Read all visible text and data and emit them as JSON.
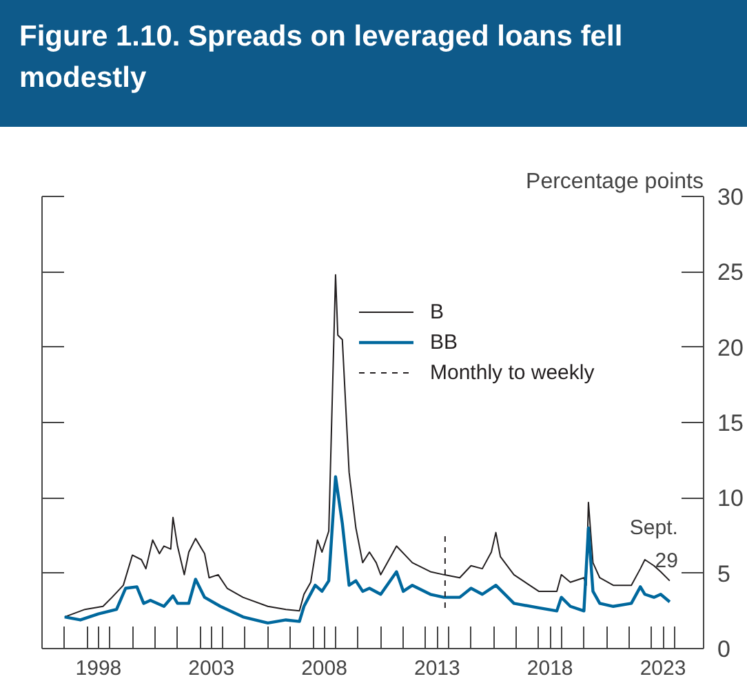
{
  "chart_data": {
    "type": "line",
    "title": "Figure 1.10. Spreads on leveraged loans fell modestly",
    "ylabel": "Percentage points",
    "xlim": [
      1996,
      2025.3
    ],
    "ylim": [
      0,
      30
    ],
    "yticks": [
      0,
      5,
      10,
      15,
      20,
      25,
      30
    ],
    "xticks": [
      {
        "value": 1997,
        "label": null
      },
      {
        "value": 1998,
        "label": null
      },
      {
        "value": 1998.5,
        "label": "1998"
      },
      {
        "value": 1999,
        "label": null
      },
      {
        "value": 2000,
        "label": null
      },
      {
        "value": 2001,
        "label": null
      },
      {
        "value": 2002,
        "label": null
      },
      {
        "value": 2003,
        "label": null
      },
      {
        "value": 2003.5,
        "label": "2003"
      },
      {
        "value": 2004,
        "label": null
      },
      {
        "value": 2005,
        "label": null
      },
      {
        "value": 2006,
        "label": null
      },
      {
        "value": 2007,
        "label": null
      },
      {
        "value": 2008,
        "label": null
      },
      {
        "value": 2008.5,
        "label": "2008"
      },
      {
        "value": 2009,
        "label": null
      },
      {
        "value": 2010,
        "label": null
      },
      {
        "value": 2011,
        "label": null
      },
      {
        "value": 2012,
        "label": null
      },
      {
        "value": 2013,
        "label": null
      },
      {
        "value": 2013.5,
        "label": "2013"
      },
      {
        "value": 2014,
        "label": null
      },
      {
        "value": 2015,
        "label": null
      },
      {
        "value": 2016,
        "label": null
      },
      {
        "value": 2017,
        "label": null
      },
      {
        "value": 2018,
        "label": null
      },
      {
        "value": 2018.5,
        "label": "2018"
      },
      {
        "value": 2019,
        "label": null
      },
      {
        "value": 2020,
        "label": null
      },
      {
        "value": 2021,
        "label": null
      },
      {
        "value": 2022,
        "label": null
      },
      {
        "value": 2023,
        "label": null
      },
      {
        "value": 2023.5,
        "label": "2023"
      },
      {
        "value": 2024,
        "label": null
      }
    ],
    "series": [
      {
        "name": "B",
        "color": "#231f20",
        "x": [
          1997.0,
          1997.9,
          1998.7,
          1999.1,
          1999.6,
          2000.0,
          2000.4,
          2000.6,
          2000.9,
          2001.2,
          2001.4,
          2001.7,
          2001.8,
          2002.0,
          2002.3,
          2002.5,
          2002.8,
          2003.2,
          2003.4,
          2003.8,
          2004.2,
          2004.9,
          2006.0,
          2006.8,
          2007.4,
          2007.6,
          2007.9,
          2008.2,
          2008.4,
          2008.7,
          2009.0,
          2009.1,
          2009.3,
          2009.6,
          2009.9,
          2010.2,
          2010.5,
          2010.8,
          2011.0,
          2011.7,
          2012.4,
          2013.2,
          2013.8,
          2014.5,
          2015.0,
          2015.5,
          2015.9,
          2016.1,
          2016.3,
          2016.9,
          2018.0,
          2018.8,
          2019.0,
          2019.4,
          2020.0,
          2020.1,
          2020.2,
          2020.4,
          2020.7,
          2021.3,
          2022.1,
          2022.5,
          2022.7,
          2023.1,
          2023.4,
          2023.8
        ],
        "values": [
          2.1,
          2.6,
          2.8,
          3.4,
          4.2,
          6.2,
          5.9,
          5.3,
          7.2,
          6.3,
          6.8,
          6.6,
          8.7,
          6.8,
          4.9,
          6.4,
          7.3,
          6.3,
          4.7,
          4.9,
          4.0,
          3.4,
          2.8,
          2.6,
          2.5,
          3.6,
          4.4,
          7.2,
          6.4,
          7.8,
          24.8,
          20.8,
          20.5,
          11.7,
          8.0,
          5.7,
          6.4,
          5.7,
          4.9,
          6.8,
          5.7,
          5.1,
          4.9,
          4.7,
          5.5,
          5.3,
          6.4,
          7.7,
          6.1,
          4.9,
          3.8,
          3.8,
          4.9,
          4.4,
          4.7,
          4.2,
          9.7,
          5.7,
          4.7,
          4.2,
          4.2,
          5.3,
          5.9,
          5.5,
          5.1,
          4.5
        ]
      },
      {
        "name": "BB",
        "color": "#00689d",
        "x": [
          1997.0,
          1997.7,
          1998.5,
          1999.3,
          1999.7,
          2000.2,
          2000.5,
          2000.8,
          2001.4,
          2001.8,
          2002.0,
          2002.5,
          2002.8,
          2003.2,
          2003.9,
          2004.9,
          2006.0,
          2006.8,
          2007.4,
          2007.6,
          2008.1,
          2008.4,
          2008.7,
          2009.0,
          2009.3,
          2009.6,
          2009.9,
          2010.2,
          2010.5,
          2011.0,
          2011.7,
          2012.0,
          2012.4,
          2013.2,
          2013.8,
          2014.5,
          2015.0,
          2015.5,
          2016.1,
          2016.9,
          2018.0,
          2018.8,
          2019.0,
          2019.4,
          2020.0,
          2020.2,
          2020.4,
          2020.7,
          2021.3,
          2022.1,
          2022.5,
          2022.7,
          2023.1,
          2023.4,
          2023.8
        ],
        "values": [
          2.1,
          1.9,
          2.3,
          2.6,
          4.0,
          4.1,
          3.0,
          3.2,
          2.8,
          3.5,
          3.0,
          3.0,
          4.6,
          3.4,
          2.8,
          2.1,
          1.7,
          1.9,
          1.8,
          2.8,
          4.2,
          3.8,
          4.5,
          11.4,
          8.3,
          4.2,
          4.5,
          3.8,
          4.0,
          3.6,
          5.1,
          3.8,
          4.2,
          3.6,
          3.4,
          3.4,
          4.0,
          3.6,
          4.2,
          3.0,
          2.7,
          2.5,
          3.4,
          2.8,
          2.5,
          8.0,
          3.8,
          3.0,
          2.8,
          3.0,
          4.1,
          3.6,
          3.4,
          3.6,
          3.1
        ]
      }
    ],
    "ref_lines": [
      {
        "axis": "x",
        "value": 2013.85,
        "label": "Monthly to weekly",
        "line_style": "dashed",
        "color": "#231f20"
      }
    ],
    "annotations": [
      {
        "text": "Sept.\n29",
        "x": 2023.8,
        "y": 4.5
      }
    ],
    "legend": "top"
  }
}
